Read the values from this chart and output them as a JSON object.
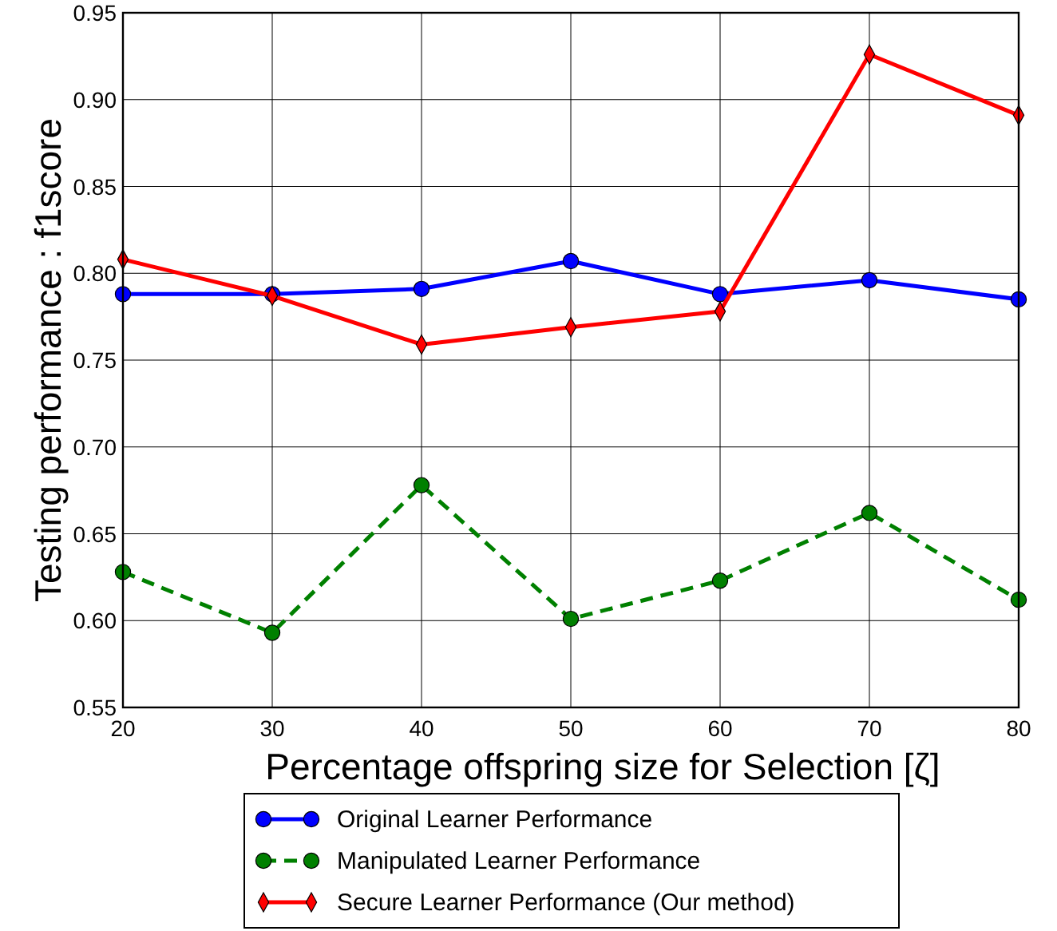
{
  "chart_data": {
    "type": "line",
    "xlabel": "Percentage offspring size for Selection [ζ]",
    "ylabel": "Testing performance : f1score",
    "x": [
      20,
      30,
      40,
      50,
      60,
      70,
      80
    ],
    "series": [
      {
        "name": "Original Learner Performance",
        "color": "#0000ff",
        "marker": "circle",
        "line_style": "solid",
        "values": [
          0.788,
          0.788,
          0.791,
          0.807,
          0.788,
          0.796,
          0.785
        ]
      },
      {
        "name": "Manipulated Learner Performance",
        "color": "#008000",
        "marker": "circle",
        "line_style": "dashed",
        "values": [
          0.628,
          0.593,
          0.678,
          0.601,
          0.623,
          0.662,
          0.612
        ]
      },
      {
        "name": "Secure Learner Performance (Our method)",
        "color": "#ff0000",
        "marker": "diamond",
        "line_style": "solid",
        "values": [
          0.808,
          0.787,
          0.759,
          0.769,
          0.778,
          0.926,
          0.891
        ]
      }
    ],
    "xlim": [
      20,
      80
    ],
    "xticks": [
      20,
      30,
      40,
      50,
      60,
      70,
      80
    ],
    "ylim": [
      0.55,
      0.95
    ],
    "yticks": [
      {
        "value": 0.55,
        "label": "0.55"
      },
      {
        "value": 0.6,
        "label": "0.60"
      },
      {
        "value": 0.65,
        "label": "0.65"
      },
      {
        "value": 0.7,
        "label": "0.70"
      },
      {
        "value": 0.75,
        "label": "0.75"
      },
      {
        "value": 0.8,
        "label": "0.80"
      },
      {
        "value": 0.85,
        "label": "0.85"
      },
      {
        "value": 0.9,
        "label": "0.90"
      },
      {
        "value": 0.95,
        "label": "0.95"
      }
    ],
    "grid": true,
    "legend": "bottom"
  }
}
